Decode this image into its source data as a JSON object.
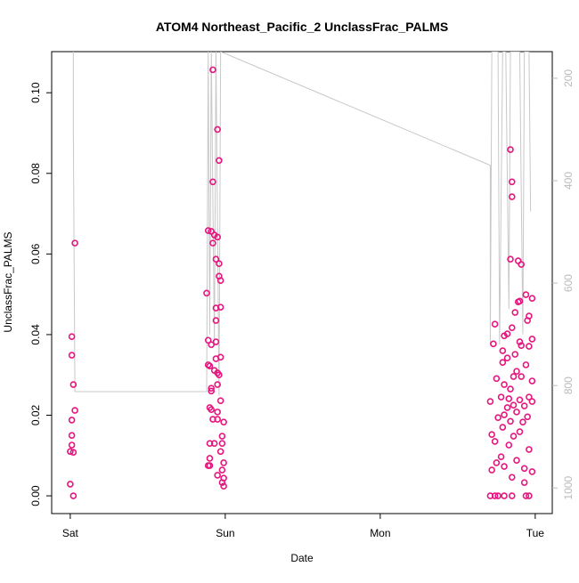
{
  "chart_data": {
    "type": "scatter",
    "title": "ATOM4 Northeast_Pacific_2 UnclassFrac_PALMS",
    "x_label": "Date",
    "y_label": "UnclassFrac_PALMS",
    "xlim": [
      -0.12,
      3.11
    ],
    "xticks": [
      {
        "value": 0,
        "label": "Sat"
      },
      {
        "value": 1,
        "label": "Sun"
      },
      {
        "value": 2,
        "label": "Mon"
      },
      {
        "value": 3,
        "label": "Tue"
      }
    ],
    "ylim": [
      -0.0044,
      0.1102
    ],
    "yticks": [
      {
        "value": 0,
        "label": "0.00"
      },
      {
        "value": 0.02,
        "label": "0.02"
      },
      {
        "value": 0.04,
        "label": "0.04"
      },
      {
        "value": 0.06,
        "label": "0.06"
      },
      {
        "value": 0.08,
        "label": "0.08"
      },
      {
        "value": 0.1,
        "label": "0.10"
      }
    ],
    "y2lim": [
      1050,
      148
    ],
    "y2ticks": [
      200,
      400,
      600,
      800,
      1000
    ],
    "series": [
      {
        "color": "#e6157f",
        "x": [
          0.03,
          0.01,
          0.01,
          0.02,
          0.03,
          0.01,
          0.01,
          0.01,
          0.0,
          0.02,
          0.0,
          0.02,
          0.92,
          0.95,
          0.96,
          0.92,
          0.89,
          0.91,
          0.93,
          0.95,
          0.92,
          0.94,
          0.96,
          0.96,
          0.97,
          0.88,
          0.97,
          0.94,
          0.94,
          0.89,
          0.94,
          0.91,
          0.97,
          0.94,
          0.89,
          0.9,
          0.93,
          0.95,
          0.96,
          0.95,
          0.91,
          0.91,
          0.97,
          0.9,
          0.91,
          0.95,
          0.92,
          0.95,
          0.99,
          0.98,
          0.9,
          0.93,
          0.98,
          0.97,
          0.9,
          0.99,
          0.89,
          0.9,
          0.98,
          0.95,
          0.99,
          0.98,
          0.99,
          2.84,
          2.85,
          2.85,
          2.84,
          2.89,
          2.91,
          2.94,
          2.98,
          2.9,
          2.89,
          2.87,
          2.96,
          2.95,
          2.74,
          2.85,
          2.82,
          2.8,
          2.9,
          2.98,
          2.73,
          2.91,
          2.79,
          2.87,
          2.96,
          2.82,
          2.79,
          2.94,
          2.88,
          2.86,
          2.91,
          2.75,
          2.98,
          2.8,
          2.84,
          2.78,
          2.96,
          2.83,
          2.9,
          2.71,
          2.98,
          2.86,
          2.82,
          2.93,
          2.88,
          2.8,
          2.95,
          2.76,
          2.84,
          2.92,
          2.79,
          2.9,
          2.72,
          2.86,
          2.74,
          2.83,
          2.96,
          2.78,
          2.88,
          2.75,
          2.8,
          2.93,
          2.72,
          2.98,
          2.85,
          2.93,
          2.71,
          2.74,
          2.76,
          2.8,
          2.85,
          2.94,
          2.96
        ],
        "values": [
          0.0627,
          0.0395,
          0.0349,
          0.0276,
          0.0212,
          0.0188,
          0.015,
          0.0126,
          0.011,
          0.0108,
          0.0029,
          0,
          0.1057,
          0.0909,
          0.0832,
          0.0779,
          0.0658,
          0.0656,
          0.0647,
          0.0642,
          0.0627,
          0.0587,
          0.0576,
          0.0545,
          0.0534,
          0.0503,
          0.0468,
          0.0466,
          0.0435,
          0.0386,
          0.0382,
          0.0375,
          0.0344,
          0.034,
          0.0325,
          0.0322,
          0.0311,
          0.0305,
          0.03,
          0.0276,
          0.0267,
          0.026,
          0.0236,
          0.0219,
          0.0214,
          0.0208,
          0.019,
          0.019,
          0.0183,
          0.0148,
          0.013,
          0.013,
          0.013,
          0.011,
          0.0093,
          0.0082,
          0.0075,
          0.0075,
          0.0064,
          0.0051,
          0.0044,
          0.0033,
          0.0024,
          0.0859,
          0.0779,
          0.0742,
          0.0587,
          0.0583,
          0.0574,
          0.0499,
          0.049,
          0.0483,
          0.0481,
          0.0455,
          0.0446,
          0.0435,
          0.0426,
          0.0417,
          0.0402,
          0.0397,
          0.0382,
          0.0389,
          0.0377,
          0.0373,
          0.036,
          0.0351,
          0.0371,
          0.0342,
          0.0331,
          0.0325,
          0.0309,
          0.0296,
          0.0296,
          0.0291,
          0.0285,
          0.0276,
          0.0265,
          0.0245,
          0.0245,
          0.0241,
          0.0238,
          0.0234,
          0.0234,
          0.0225,
          0.0219,
          0.0223,
          0.0208,
          0.0201,
          0.0196,
          0.0194,
          0.0185,
          0.0183,
          0.017,
          0.0159,
          0.0152,
          0.0148,
          0.0135,
          0.0126,
          0.0115,
          0.0097,
          0.0088,
          0.0082,
          0.0073,
          0.0068,
          0.0064,
          0.006,
          0.0046,
          0.0033,
          0,
          0,
          0,
          0,
          0,
          0,
          0
        ]
      },
      {
        "type": "line",
        "axis": "y2",
        "color": "#c8c8c8",
        "x": [
          0.02,
          0.02,
          0.03,
          0.88,
          0.89,
          0.9,
          0.91,
          0.93,
          0.94,
          0.96,
          0.97,
          2.71,
          2.71,
          2.72,
          2.76,
          2.77,
          2.79,
          2.81,
          2.83,
          2.84,
          2.9,
          2.92,
          2.93,
          2.96,
          2.97
        ],
        "values": [
          148,
          304,
          812,
          812,
          148,
          700,
          148,
          720,
          148,
          820,
          148,
          370,
          720,
          148,
          148,
          720,
          148,
          148,
          650,
          148,
          148,
          700,
          148,
          148,
          460
        ]
      }
    ]
  }
}
